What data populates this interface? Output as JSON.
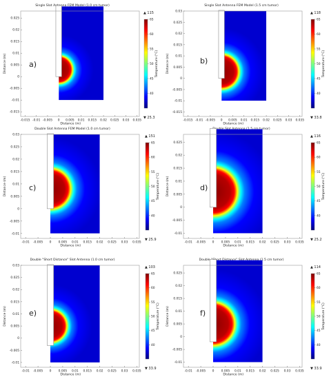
{
  "colorbar_label": "Temperature (°C)",
  "colormap": [
    "#00007f",
    "#0000ff",
    "#007fff",
    "#00ffff",
    "#7fff7f",
    "#ffff00",
    "#ff7f00",
    "#ff0000",
    "#7f0000"
  ],
  "chart_data": [
    {
      "type": "heatmap",
      "letter": "a)",
      "title": "Single Slot Antenna FEM Model (1.0 cm tumor)",
      "xlabel": "Distance (m)",
      "ylabel": "Distance (m)",
      "xlim": [
        -0.017,
        0.036
      ],
      "ylim": [
        -0.017,
        0.028
      ],
      "xticks": [
        -0.015,
        -0.01,
        -0.005,
        0,
        0.005,
        0.01,
        0.015,
        0.02,
        0.025,
        0.03,
        0.035
      ],
      "xtick_labels": [
        "-0.015",
        "-0.01",
        "-0.005",
        "0",
        "0.005",
        "0.01",
        "0.015",
        "0.02",
        "0.025",
        "0.03",
        "0.035"
      ],
      "yticks": [
        -0.015,
        -0.01,
        -0.005,
        0,
        0.005,
        0.01,
        0.015,
        0.02,
        0.025
      ],
      "ytick_labels": [
        "-0.015",
        "-0.01",
        "-0.005",
        "0",
        "0.005",
        "0.01",
        "0.015",
        "0.02",
        "0.025"
      ],
      "domain": {
        "x": [
          0,
          0.02
        ],
        "y": [
          -0.01,
          0.03
        ]
      },
      "antenna_tip_y": 0,
      "hot_zone": {
        "center": [
          0,
          0.003
        ],
        "radius": 0.006
      },
      "colorbar": {
        "ticks": [
          40,
          45,
          50,
          55,
          60,
          65
        ],
        "tick_labels": [
          "40",
          "45",
          "50",
          "55",
          "60",
          "65"
        ],
        "range": [
          35,
          65
        ],
        "max_label": "▲ 115",
        "min_label": "▼ 25.3"
      }
    },
    {
      "type": "heatmap",
      "letter": "b)",
      "title": "Single Slot Antenna FEM Model (1.5 cm tumor)",
      "xlabel": "Distance (m)",
      "ylabel": "Distance (m)",
      "xlim": [
        -0.017,
        0.036
      ],
      "ylim": [
        -0.017,
        0.03
      ],
      "xticks": [
        -0.015,
        -0.01,
        -0.005,
        0,
        0.005,
        0.01,
        0.015,
        0.02,
        0.025,
        0.03,
        0.035
      ],
      "xtick_labels": [
        "-0.015",
        "-0.01",
        "-0.005",
        "0",
        "0.005",
        "0.01",
        "0.015",
        "0.02",
        "0.025",
        "0.03",
        "0.035"
      ],
      "yticks": [
        -0.015,
        -0.01,
        -0.005,
        0,
        0.005,
        0.01,
        0.015,
        0.02,
        0.025,
        0.03
      ],
      "ytick_labels": [
        "-0.015",
        "-0.01",
        "-0.005",
        "0",
        "0.005",
        "0.01",
        "0.015",
        "0.02",
        "0.025",
        "0.03"
      ],
      "domain": {
        "x": [
          0,
          0.02
        ],
        "y": [
          -0.01,
          0.03
        ]
      },
      "antenna_tip_y": 0,
      "hot_zone": {
        "center": [
          0,
          0.003
        ],
        "radius": 0.0075
      },
      "colorbar": {
        "ticks": [
          40,
          45,
          50,
          55,
          60,
          65
        ],
        "tick_labels": [
          "40",
          "45",
          "50",
          "55",
          "60",
          "65"
        ],
        "range": [
          35,
          65
        ],
        "max_label": "▲ 118",
        "min_label": "▼ 33.8"
      }
    },
    {
      "type": "heatmap",
      "letter": "c)",
      "title": "Double Slot Antenna FEM Model (1.0 cm tumor)",
      "xlabel": "Distance (m)",
      "ylabel": "Distance (m)",
      "xlim": [
        -0.012,
        0.036
      ],
      "ylim": [
        -0.012,
        0.03
      ],
      "xticks": [
        -0.01,
        -0.005,
        0,
        0.005,
        0.01,
        0.015,
        0.02,
        0.025,
        0.03,
        0.035
      ],
      "xtick_labels": [
        "-0.01",
        "-0.005",
        "0",
        "0.005",
        "0.01",
        "0.015",
        "0.02",
        "0.025",
        "0.03",
        "0.035"
      ],
      "yticks": [
        -0.01,
        -0.005,
        0,
        0.005,
        0.01,
        0.015,
        0.02,
        0.025,
        0.03
      ],
      "ytick_labels": [
        "-0.01",
        "-0.005",
        "0",
        "0.005",
        "0.01",
        "0.015",
        "0.02",
        "0.025",
        "0.03"
      ],
      "domain": {
        "x": [
          0,
          0.02
        ],
        "y": [
          -0.01,
          0.03
        ]
      },
      "antenna_tip_y": 0,
      "hot_zone": {
        "center": [
          0,
          0.008
        ],
        "radius": 0.008
      },
      "colorbar": {
        "ticks": [
          40,
          45,
          50,
          55,
          60,
          65
        ],
        "tick_labels": [
          "40",
          "45",
          "50",
          "55",
          "60",
          "65"
        ],
        "range": [
          35,
          65
        ],
        "max_label": "▲ 151",
        "min_label": "▼ 25.9"
      }
    },
    {
      "type": "heatmap",
      "letter": "d)",
      "title": "Double Slot Antenna (1.5 cm tumor)",
      "xlabel": "Distance (m)",
      "ylabel": "Distance (m)",
      "xlim": [
        -0.012,
        0.036
      ],
      "ylim": [
        -0.012,
        0.028
      ],
      "xticks": [
        -0.01,
        -0.005,
        0,
        0.005,
        0.01,
        0.015,
        0.02,
        0.025,
        0.03,
        0.035
      ],
      "xtick_labels": [
        "-0.01",
        "-0.005",
        "0",
        "0.005",
        "0.01",
        "0.015",
        "0.02",
        "0.025",
        "0.03",
        "0.035"
      ],
      "yticks": [
        -0.01,
        -0.005,
        0,
        0.005,
        0.01,
        0.015,
        0.02,
        0.025
      ],
      "ytick_labels": [
        "-0.01",
        "-0.005",
        "0",
        "0.005",
        "0.01",
        "0.015",
        "0.02",
        "0.025"
      ],
      "domain": {
        "x": [
          0,
          0.02
        ],
        "y": [
          -0.01,
          0.03
        ]
      },
      "antenna_tip_y": 0,
      "hot_zone": {
        "center": [
          0,
          0.006
        ],
        "radius": 0.0095
      },
      "colorbar": {
        "ticks": [
          40,
          45,
          50,
          55,
          60,
          65
        ],
        "tick_labels": [
          "40",
          "45",
          "50",
          "55",
          "60",
          "65"
        ],
        "range": [
          35,
          65
        ],
        "max_label": "▲ 116",
        "min_label": "▼ 25.2"
      }
    },
    {
      "type": "heatmap",
      "letter": "e)",
      "title": "Double \"Short Distance\" Slot Antenna (1.0 cm tumor)",
      "xlabel": "Distance (m)",
      "ylabel": "Distance (m)",
      "xlim": [
        -0.012,
        0.036
      ],
      "ylim": [
        -0.012,
        0.03
      ],
      "xticks": [
        -0.01,
        -0.005,
        0,
        0.005,
        0.01,
        0.015,
        0.02,
        0.025,
        0.03,
        0.035
      ],
      "xtick_labels": [
        "-0.01",
        "-0.005",
        "0",
        "0.005",
        "0.01",
        "0.015",
        "0.02",
        "0.025",
        "0.03",
        "0.035"
      ],
      "yticks": [
        -0.01,
        -0.005,
        0,
        0.005,
        0.01,
        0.015,
        0.02,
        0.025,
        0.03
      ],
      "ytick_labels": [
        "-0.01",
        "-0.005",
        "0",
        "0.005",
        "0.01",
        "0.015",
        "0.02",
        "0.025",
        "0.03"
      ],
      "domain": {
        "x": [
          0,
          0.02
        ],
        "y": [
          -0.01,
          0.03
        ]
      },
      "antenna_tip_y": -0.003,
      "hot_zone": {
        "center": [
          0,
          0.005
        ],
        "radius": 0.0065
      },
      "colorbar": {
        "ticks": [
          40,
          45,
          50,
          55,
          60,
          65
        ],
        "tick_labels": [
          "40",
          "45",
          "50",
          "55",
          "60",
          "65"
        ],
        "range": [
          35,
          65
        ],
        "max_label": "▲ 103",
        "min_label": "▼ 33.9"
      }
    },
    {
      "type": "heatmap",
      "letter": "f)",
      "title": "Double \"Short Distance\" Slot Antenna (1.5 cm tumor)",
      "xlabel": "Distance (m)",
      "ylabel": "Distance (m)",
      "xlim": [
        -0.012,
        0.036
      ],
      "ylim": [
        -0.012,
        0.028
      ],
      "xticks": [
        -0.01,
        -0.005,
        0,
        0.005,
        0.01,
        0.015,
        0.02,
        0.025,
        0.03,
        0.035
      ],
      "xtick_labels": [
        "-0.01",
        "-0.005",
        "0",
        "0.005",
        "0.01",
        "0.015",
        "0.02",
        "0.025",
        "0.03",
        "0.035"
      ],
      "yticks": [
        -0.01,
        -0.005,
        0,
        0.005,
        0.01,
        0.015,
        0.02,
        0.025
      ],
      "ytick_labels": [
        "-0.01",
        "-0.005",
        "0",
        "0.005",
        "0.01",
        "0.015",
        "0.02",
        "0.025"
      ],
      "domain": {
        "x": [
          0,
          0.02
        ],
        "y": [
          -0.01,
          0.03
        ]
      },
      "antenna_tip_y": -0.002,
      "hot_zone": {
        "center": [
          0,
          0.005
        ],
        "radius": 0.0085
      },
      "colorbar": {
        "ticks": [
          40,
          45,
          50,
          55,
          60,
          65
        ],
        "tick_labels": [
          "40",
          "45",
          "50",
          "55",
          "60",
          "65"
        ],
        "range": [
          35,
          65
        ],
        "max_label": "▲ 114",
        "min_label": "▼ 33.9"
      }
    }
  ]
}
